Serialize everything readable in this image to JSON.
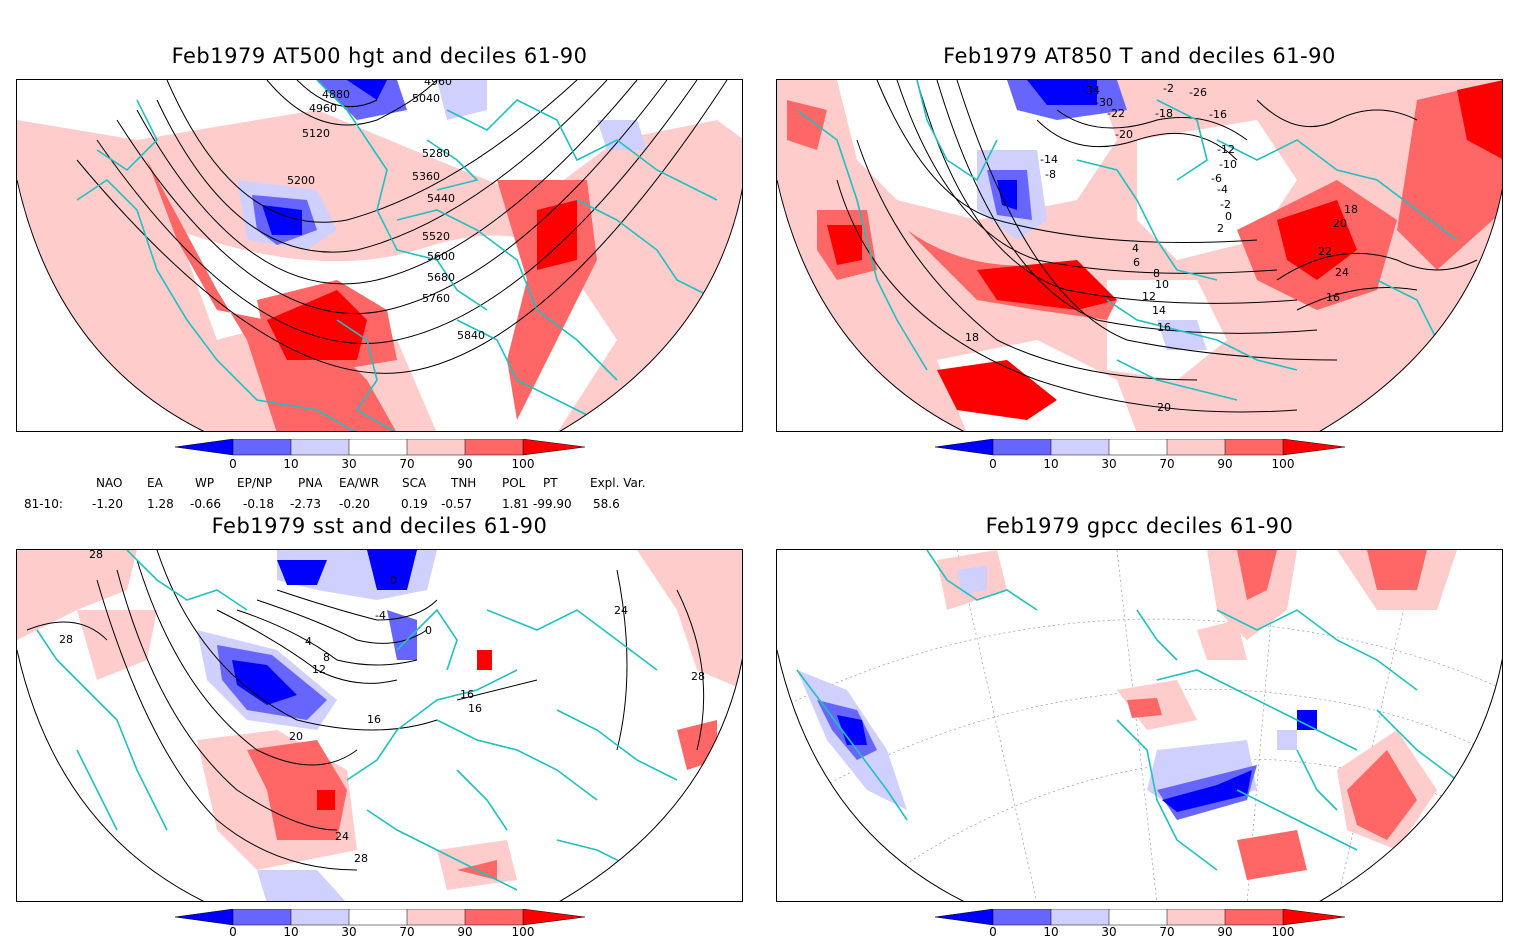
{
  "panels": [
    {
      "title": "Feb1979 AT500 hgt and deciles 61-90",
      "contour_labels": [
        "4880",
        "4960",
        "4960",
        "5040",
        "5120",
        "5200",
        "5280",
        "5360",
        "5440",
        "5520",
        "5600",
        "5680",
        "5760",
        "5840"
      ]
    },
    {
      "title": "Feb1979 AT850 T and deciles 61-90",
      "contour_labels": [
        "-34",
        "-30",
        "-26",
        "-2",
        "-22",
        "-20",
        "-18",
        "-16",
        "-14",
        "-12",
        "-10",
        "-8",
        "-6",
        "-4",
        "-2",
        "0",
        "2",
        "4",
        "6",
        "8",
        "10",
        "12",
        "14",
        "16",
        "18",
        "20",
        "22",
        "24",
        "16",
        "18",
        "20"
      ]
    },
    {
      "title": "Feb1979 sst and deciles 61-90",
      "contour_labels": [
        "28",
        "28",
        "0",
        "4",
        "8",
        "12",
        "16",
        "20",
        "24",
        "28",
        "24",
        "16",
        "16",
        "28",
        "-4",
        "0"
      ]
    },
    {
      "title": "Feb1979 gpcc deciles 61-90",
      "contour_labels": []
    }
  ],
  "colorbar": {
    "ticks": [
      "0",
      "10",
      "30",
      "70",
      "90",
      "100"
    ],
    "colors": [
      "#0000ff",
      "#6666ff",
      "#d0d0ff",
      "#ffffff",
      "#ffcccc",
      "#ff6666",
      "#ff0000"
    ]
  },
  "teleconnections": {
    "row_label": "81-10:",
    "headers": [
      "NAO",
      "EA",
      "WP",
      "EP/NP",
      "PNA",
      "EA/WR",
      "SCA",
      "TNH",
      "POL",
      "PT",
      "Expl. Var."
    ],
    "values": [
      "-1.20",
      "1.28",
      "-0.66",
      "-0.18",
      "-2.73",
      "-0.20",
      "0.19",
      "-0.57",
      "1.81",
      "-99.90",
      "58.6"
    ]
  },
  "colors": {
    "coast": "#20c0c0",
    "high": "#ff0000",
    "mid_high": "#ff6666",
    "low_high": "#ffcccc",
    "low": "#0000ff",
    "mid_low": "#6666ff",
    "low_low": "#d0d0ff"
  }
}
